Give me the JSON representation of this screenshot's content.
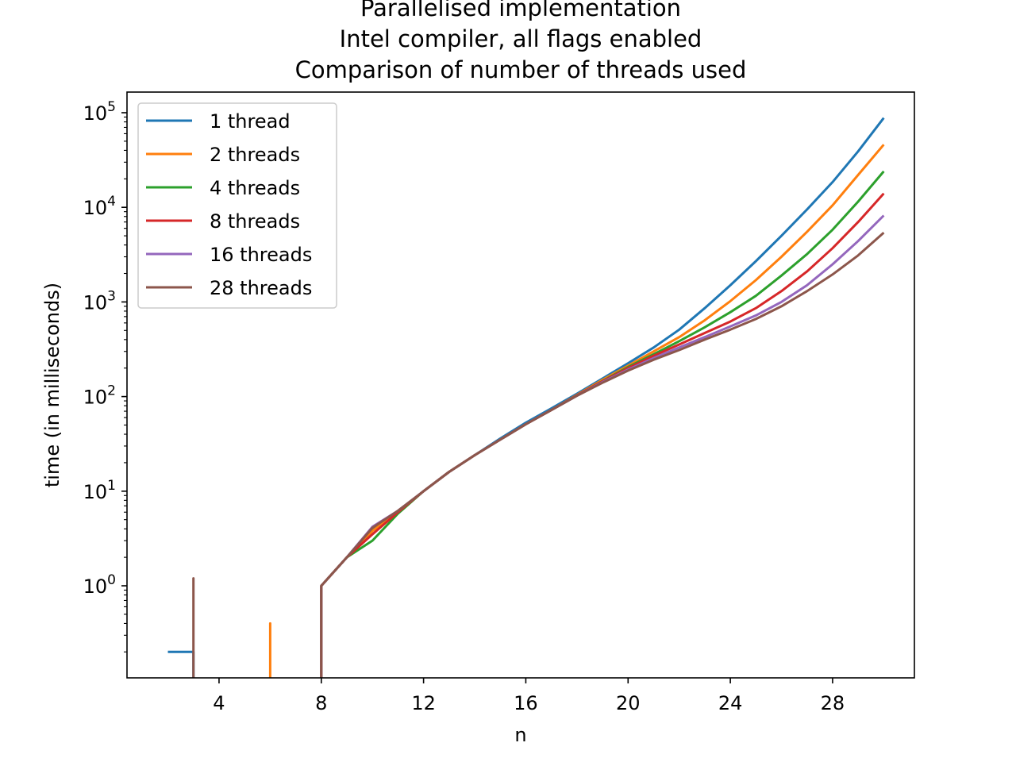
{
  "chart_data": {
    "type": "line",
    "title": [
      "Parallelised implementation",
      "Intel compiler, all flags enabled",
      "Comparison of number of threads used"
    ],
    "xlabel": "n",
    "ylabel": "time (in milliseconds)",
    "xlim": [
      0.4,
      31.2
    ],
    "ylim_log10": [
      -0.97,
      1.233
    ],
    "yscale": "log",
    "xticks": [
      4,
      8,
      12,
      16,
      20,
      24,
      28
    ],
    "yticks": [
      {
        "base": "10",
        "exp": "0",
        "value": 1
      },
      {
        "base": "10",
        "exp": "1",
        "value": 10
      },
      {
        "base": "10",
        "exp": "2",
        "value": 100
      },
      {
        "base": "10",
        "exp": "3",
        "value": 1000
      },
      {
        "base": "10",
        "exp": "4",
        "value": 10000
      },
      {
        "base": "10",
        "exp": "5",
        "value": 100000
      }
    ],
    "legend_position": "top-left",
    "grid": false,
    "series": [
      {
        "name": "1 thread",
        "color": "#1f77b4",
        "points": [
          [
            2,
            0.2
          ],
          [
            3,
            0.2
          ],
          [
            3,
            0
          ],
          [
            8,
            0
          ],
          [
            8,
            1
          ],
          [
            9,
            2
          ],
          [
            10,
            4
          ],
          [
            11,
            6
          ],
          [
            12,
            10
          ],
          [
            13,
            16
          ],
          [
            14,
            24
          ],
          [
            15,
            36
          ],
          [
            16,
            53
          ],
          [
            17,
            75
          ],
          [
            18,
            107
          ],
          [
            19,
            155
          ],
          [
            20,
            225
          ],
          [
            21,
            330
          ],
          [
            22,
            510
          ],
          [
            23,
            860
          ],
          [
            24,
            1500
          ],
          [
            25,
            2700
          ],
          [
            26,
            5000
          ],
          [
            27,
            9500
          ],
          [
            28,
            18500
          ],
          [
            29,
            39000
          ],
          [
            30,
            88000
          ]
        ]
      },
      {
        "name": "2 threads",
        "color": "#ff7f0e",
        "points": [
          [
            3,
            0
          ],
          [
            6,
            0
          ],
          [
            6,
            0.4
          ],
          [
            6,
            0
          ],
          [
            8,
            0
          ],
          [
            8,
            1
          ],
          [
            9,
            2
          ],
          [
            10,
            3.8
          ],
          [
            11,
            6
          ],
          [
            12,
            10
          ],
          [
            13,
            16
          ],
          [
            14,
            24
          ],
          [
            15,
            35
          ],
          [
            16,
            51
          ],
          [
            17,
            72
          ],
          [
            18,
            104
          ],
          [
            19,
            150
          ],
          [
            20,
            212
          ],
          [
            21,
            300
          ],
          [
            22,
            425
          ],
          [
            23,
            640
          ],
          [
            24,
            1020
          ],
          [
            25,
            1700
          ],
          [
            26,
            3000
          ],
          [
            27,
            5500
          ],
          [
            28,
            10500
          ],
          [
            29,
            22000
          ],
          [
            30,
            46000
          ]
        ]
      },
      {
        "name": "4 threads",
        "color": "#2ca02c",
        "points": [
          [
            3,
            0
          ],
          [
            8,
            0
          ],
          [
            8,
            1
          ],
          [
            9,
            2
          ],
          [
            10,
            3
          ],
          [
            11,
            5.8
          ],
          [
            12,
            10
          ],
          [
            13,
            16
          ],
          [
            14,
            24
          ],
          [
            15,
            35
          ],
          [
            16,
            51
          ],
          [
            17,
            72
          ],
          [
            18,
            103
          ],
          [
            19,
            146
          ],
          [
            20,
            205
          ],
          [
            21,
            280
          ],
          [
            22,
            385
          ],
          [
            23,
            540
          ],
          [
            24,
            780
          ],
          [
            25,
            1160
          ],
          [
            26,
            1900
          ],
          [
            27,
            3200
          ],
          [
            28,
            5800
          ],
          [
            29,
            11500
          ],
          [
            30,
            24000
          ]
        ]
      },
      {
        "name": "8 threads",
        "color": "#d62728",
        "points": [
          [
            3,
            0
          ],
          [
            8,
            0
          ],
          [
            8,
            1
          ],
          [
            9,
            2
          ],
          [
            10,
            3.5
          ],
          [
            11,
            6
          ],
          [
            12,
            10
          ],
          [
            13,
            16
          ],
          [
            14,
            24
          ],
          [
            15,
            35
          ],
          [
            16,
            51
          ],
          [
            17,
            72
          ],
          [
            18,
            103
          ],
          [
            19,
            145
          ],
          [
            20,
            200
          ],
          [
            21,
            270
          ],
          [
            22,
            355
          ],
          [
            23,
            470
          ],
          [
            24,
            620
          ],
          [
            25,
            860
          ],
          [
            26,
            1300
          ],
          [
            27,
            2100
          ],
          [
            28,
            3700
          ],
          [
            29,
            7000
          ],
          [
            30,
            14000
          ]
        ]
      },
      {
        "name": "16 threads",
        "color": "#9467bd",
        "points": [
          [
            3,
            0
          ],
          [
            8,
            0
          ],
          [
            8,
            1
          ],
          [
            9,
            2
          ],
          [
            10,
            4.2
          ],
          [
            11,
            6.2
          ],
          [
            12,
            10
          ],
          [
            13,
            16
          ],
          [
            14,
            24
          ],
          [
            15,
            35
          ],
          [
            16,
            51
          ],
          [
            17,
            72
          ],
          [
            18,
            102
          ],
          [
            19,
            142
          ],
          [
            20,
            193
          ],
          [
            21,
            255
          ],
          [
            22,
            330
          ],
          [
            23,
            425
          ],
          [
            24,
            550
          ],
          [
            25,
            720
          ],
          [
            26,
            1000
          ],
          [
            27,
            1500
          ],
          [
            28,
            2500
          ],
          [
            29,
            4400
          ],
          [
            30,
            8200
          ]
        ]
      },
      {
        "name": "28 threads",
        "color": "#8c564b",
        "points": [
          [
            3,
            0
          ],
          [
            3,
            1.2
          ],
          [
            3,
            0
          ],
          [
            8,
            0
          ],
          [
            8,
            1
          ],
          [
            9,
            2
          ],
          [
            10,
            4.1
          ],
          [
            11,
            6.2
          ],
          [
            12,
            10
          ],
          [
            13,
            16
          ],
          [
            14,
            24
          ],
          [
            15,
            35
          ],
          [
            16,
            51
          ],
          [
            17,
            72
          ],
          [
            18,
            102
          ],
          [
            19,
            140
          ],
          [
            20,
            188
          ],
          [
            21,
            245
          ],
          [
            22,
            310
          ],
          [
            23,
            400
          ],
          [
            24,
            510
          ],
          [
            25,
            660
          ],
          [
            26,
            900
          ],
          [
            27,
            1300
          ],
          [
            28,
            1950
          ],
          [
            29,
            3100
          ],
          [
            30,
            5400
          ]
        ]
      }
    ]
  }
}
